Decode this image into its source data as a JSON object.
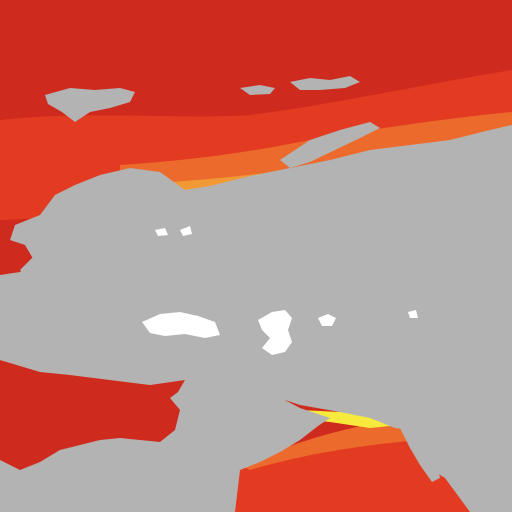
{
  "map": {
    "colors": {
      "land": "#b3b3b3",
      "lake": "#ffffff",
      "ocean_deep": "#cf2a1e",
      "ocean_mid": "#e33b22",
      "ocean_light": "#ec6b2c",
      "ocean_warm": "#f19a35",
      "ocean_shallow": "#f6c83a",
      "ocean_coast": "#f7ea3c"
    },
    "layers": [
      "sea-surface-zones",
      "land",
      "inland-lakes"
    ],
    "legend": null
  }
}
